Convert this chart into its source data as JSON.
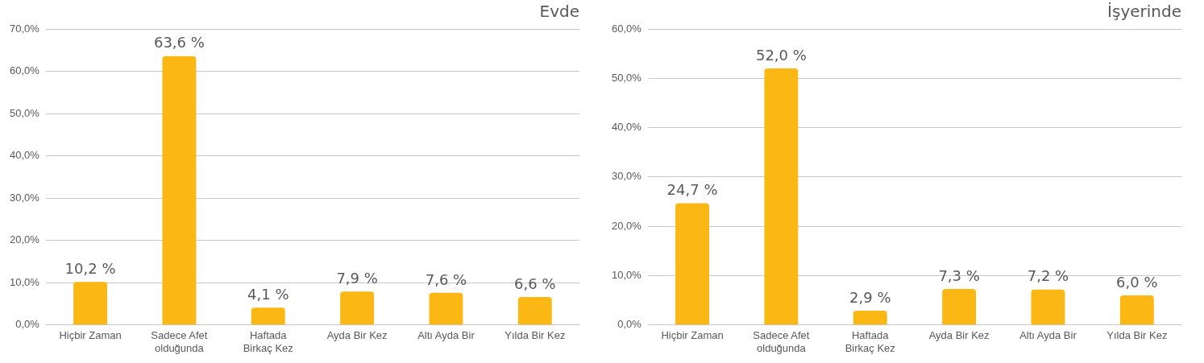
{
  "chart_data": [
    {
      "type": "bar",
      "title": "Evde",
      "categories": [
        "Hiçbir Zaman",
        "Sadece Afet olduğunda",
        "Haftada Birkaç Kez",
        "Ayda Bir Kez",
        "Altı Ayda Bir",
        "Yılda Bir Kez"
      ],
      "values": [
        10.2,
        63.6,
        4.1,
        7.9,
        7.6,
        6.6
      ],
      "value_labels": [
        "10,2 %",
        "63,6 %",
        "4,1 %",
        "7,9 %",
        "7,6 %",
        "6,6 %"
      ],
      "color": "#fbb714",
      "ylim": [
        0,
        70
      ],
      "yticks": [
        {
          "value": 0,
          "label": "0,0%"
        },
        {
          "value": 10,
          "label": "10,0%"
        },
        {
          "value": 20,
          "label": "20,0%"
        },
        {
          "value": 30,
          "label": "30,0%"
        },
        {
          "value": 40,
          "label": "40,0%"
        },
        {
          "value": 50,
          "label": "50,0%"
        },
        {
          "value": 60,
          "label": "60,0%"
        },
        {
          "value": 70,
          "label": "70,0%"
        }
      ],
      "grid": "y",
      "legend": false
    },
    {
      "type": "bar",
      "title": "İşyerinde",
      "categories": [
        "Hiçbir Zaman",
        "Sadece Afet olduğunda",
        "Haftada Birkaç Kez",
        "Ayda Bir Kez",
        "Altı Ayda Bir",
        "Yılda Bir Kez"
      ],
      "values": [
        24.7,
        52.0,
        2.9,
        7.3,
        7.2,
        6.0
      ],
      "value_labels": [
        "24,7 %",
        "52,0 %",
        "2,9 %",
        "7,3 %",
        "7,2 %",
        "6,0 %"
      ],
      "color": "#fbb714",
      "ylim": [
        0,
        60
      ],
      "yticks": [
        {
          "value": 0,
          "label": "0,0%"
        },
        {
          "value": 10,
          "label": "10,0%"
        },
        {
          "value": 20,
          "label": "20,0%"
        },
        {
          "value": 30,
          "label": "30,0%"
        },
        {
          "value": 40,
          "label": "40,0%"
        },
        {
          "value": 50,
          "label": "50,0%"
        },
        {
          "value": 60,
          "label": "60,0%"
        }
      ],
      "grid": "y",
      "legend": false
    }
  ]
}
